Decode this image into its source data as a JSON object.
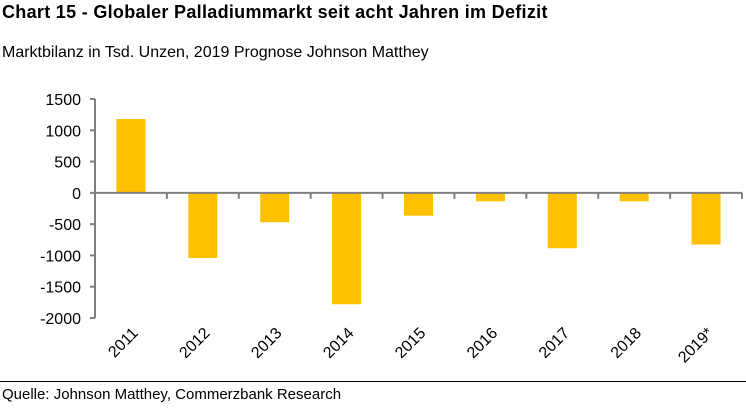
{
  "title": "Chart 15 - Globaler Palladiummarkt seit acht Jahren im Defizit",
  "subtitle": "Marktbilanz in Tsd. Unzen, 2019 Prognose Johnson Matthey",
  "source": "Quelle: Johnson Matthey, Commerzbank Research",
  "colors": {
    "bar": "#FFC000",
    "axis": "#808080"
  },
  "chart_data": {
    "type": "bar",
    "title": "Chart 15 - Globaler Palladiummarkt seit acht Jahren im Defizit",
    "ylabel": "Marktbilanz in Tsd. Unzen",
    "categories": [
      "2011",
      "2012",
      "2013",
      "2014",
      "2015",
      "2016",
      "2017",
      "2018",
      "2019*"
    ],
    "values": [
      1180,
      -1040,
      -470,
      -1780,
      -365,
      -135,
      -885,
      -135,
      -825
    ],
    "ylim": [
      -2000,
      1500
    ],
    "yticks": [
      1500,
      1000,
      500,
      0,
      -500,
      -1000,
      -1500,
      -2000
    ],
    "grid": false,
    "legend": "none"
  }
}
